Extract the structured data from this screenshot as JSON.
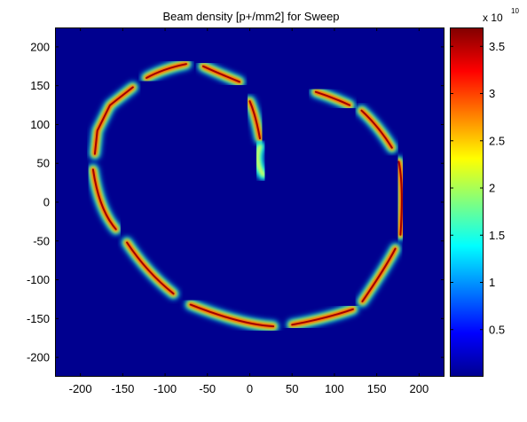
{
  "chart_data": {
    "type": "heatmap",
    "title": "Beam density [p+/mm2] for Sweep",
    "xlabel": "",
    "ylabel": "",
    "xlim": [
      -230,
      230
    ],
    "ylim": [
      -225,
      225
    ],
    "x_ticks": [
      -200,
      -150,
      -100,
      -50,
      0,
      50,
      100,
      150,
      200
    ],
    "y_ticks": [
      200,
      150,
      100,
      50,
      0,
      -50,
      -100,
      -150,
      -200
    ],
    "background_color": "#00008f",
    "colormap": "jet",
    "colorbar": {
      "range": [
        0,
        37000000000.0
      ],
      "ticks": [
        0.5,
        1,
        1.5,
        2,
        2.5,
        3,
        3.5
      ],
      "exponent_prefix": "x 10",
      "exponent": "10"
    },
    "segments": [
      {
        "path": [
          [
            -183,
            62
          ],
          [
            -180,
            92
          ],
          [
            -165,
            125
          ],
          [
            -138,
            148
          ]
        ],
        "peak": 3.5
      },
      {
        "path": [
          [
            -122,
            160
          ],
          [
            -102,
            172
          ],
          [
            -75,
            178
          ]
        ],
        "peak": 3.5
      },
      {
        "path": [
          [
            -55,
            175
          ],
          [
            -35,
            165
          ],
          [
            -12,
            155
          ]
        ],
        "peak": 3.4
      },
      {
        "path": [
          [
            0,
            130
          ],
          [
            7,
            112
          ],
          [
            12,
            82
          ]
        ],
        "peak": 3.0
      },
      {
        "path": [
          [
            12,
            72
          ],
          [
            5,
            52
          ],
          [
            16,
            35
          ]
        ],
        "peak": 1.3
      },
      {
        "path": [
          [
            78,
            142
          ],
          [
            98,
            135
          ],
          [
            118,
            125
          ]
        ],
        "peak": 3.3
      },
      {
        "path": [
          [
            132,
            118
          ],
          [
            152,
            98
          ],
          [
            168,
            70
          ]
        ],
        "peak": 3.4
      },
      {
        "path": [
          [
            176,
            52
          ],
          [
            182,
            20
          ],
          [
            178,
            -42
          ]
        ],
        "peak": 3.5
      },
      {
        "path": [
          [
            172,
            -60
          ],
          [
            160,
            -85
          ],
          [
            133,
            -128
          ]
        ],
        "peak": 3.3
      },
      {
        "path": [
          [
            122,
            -138
          ],
          [
            90,
            -150
          ],
          [
            50,
            -158
          ]
        ],
        "peak": 3.3
      },
      {
        "path": [
          [
            28,
            -160
          ],
          [
            -10,
            -158
          ],
          [
            -70,
            -132
          ]
        ],
        "peak": 3.3
      },
      {
        "path": [
          [
            -90,
            -118
          ],
          [
            -122,
            -90
          ],
          [
            -145,
            -52
          ]
        ],
        "peak": 3.4
      },
      {
        "path": [
          [
            -158,
            -35
          ],
          [
            -178,
            -10
          ],
          [
            -185,
            42
          ]
        ],
        "peak": 3.4
      }
    ]
  }
}
